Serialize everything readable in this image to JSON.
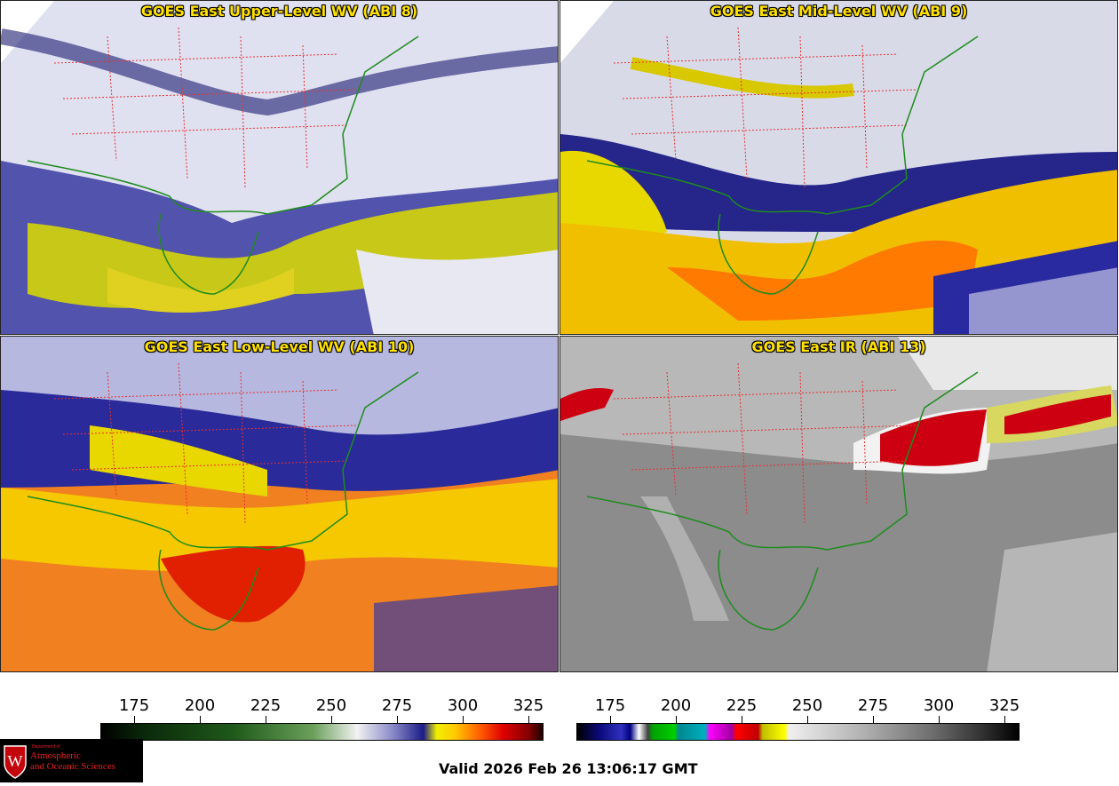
{
  "panels": [
    {
      "title": "GOES East Upper-Level WV (ABI 8)",
      "product": "upper-wv"
    },
    {
      "title": "GOES East Mid-Level WV (ABI 9)",
      "product": "mid-wv"
    },
    {
      "title": "GOES East Low-Level WV (ABI 10)",
      "product": "low-wv"
    },
    {
      "title": "GOES East IR (ABI 13)",
      "product": "ir"
    }
  ],
  "colorbars": {
    "left": {
      "ticks": [
        "175",
        "200",
        "225",
        "250",
        "275",
        "300",
        "325"
      ]
    },
    "right": {
      "ticks": [
        "175",
        "200",
        "225",
        "250",
        "275",
        "300",
        "325"
      ]
    }
  },
  "logo": {
    "dept": "Department of",
    "line1": "Atmospheric",
    "line2": "and Oceanic Sciences",
    "emblem": "W"
  },
  "valid_time": "Valid 2026 Feb 26 13:06:17 GMT",
  "colors": {
    "coast": "#1e8c1e",
    "state_border": "#e83030",
    "country_border": "#7a4a1a",
    "title_text": "#ffe000"
  }
}
